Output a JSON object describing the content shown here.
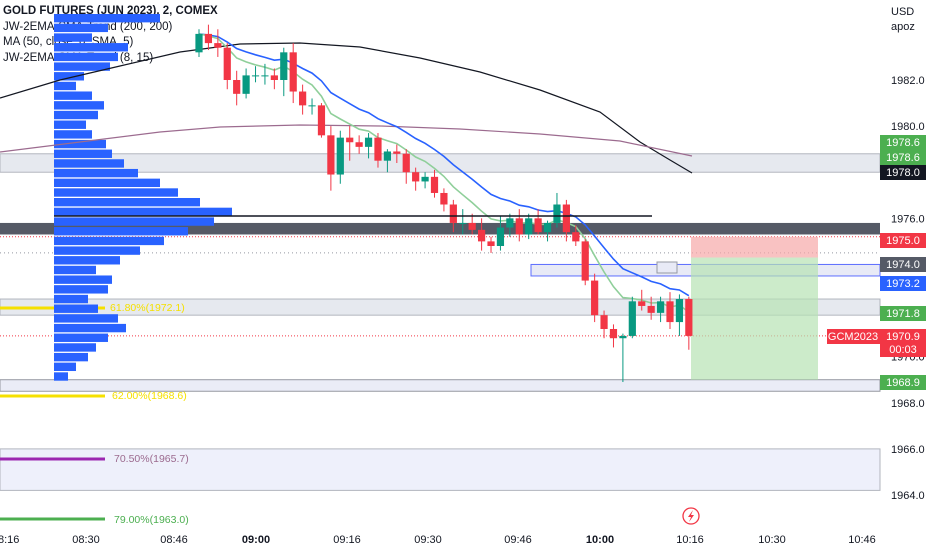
{
  "legend": {
    "title": "GOLD FUTURES (JUN 2023), 2, COMEX",
    "line1": "JW-2EMA-SMA-Trend (200, 200)",
    "line2": "MA (50, close, 0, SMA, 5)",
    "line3": "JW-2EMA-SMA-Trend (8, 15)"
  },
  "currency": "USD",
  "currency_sub": "apoz",
  "colors": {
    "up": "#089981",
    "down": "#f23645",
    "ema_fast": "#2962ff",
    "ema_slow": "#8fcf9a",
    "ma": "#131722",
    "sma200": "#9c6b8f",
    "profile": "#2962ff",
    "fib": "#f5e000",
    "fib2": "#9c27b0",
    "fib3": "#4caf50"
  },
  "fib_labels": {
    "fib_a": "61.80%(1972.1)",
    "fib_b": "62.00%(1968.6)",
    "fib_c": "70.50%(1965.7)",
    "fib_d": "79.00%(1963.0)"
  },
  "badges": {
    "r1": "1978.6",
    "r2": "1978.6",
    "r3": "1978.0",
    "r4": "1975.0",
    "r5": "1974.0",
    "r6": "1973.2",
    "r7": "1971.8",
    "r8": "1970.9",
    "r8_timer": "00:03",
    "r9": "1968.9",
    "symbol": "GCM2023"
  },
  "chart_data": {
    "type": "candlestick",
    "title": "GOLD FUTURES (JUN 2023), 2, COMEX",
    "interval": "2",
    "y_ticks": [
      1964.0,
      1966.0,
      1968.0,
      1970.0,
      1976.0,
      1978.0,
      1980.0,
      1982.0
    ],
    "x_ticks": [
      {
        "label": "8:16",
        "bold": false
      },
      {
        "label": "08:30",
        "bold": false
      },
      {
        "label": "08:46",
        "bold": false
      },
      {
        "label": "09:00",
        "bold": true
      },
      {
        "label": "09:16",
        "bold": false
      },
      {
        "label": "09:30",
        "bold": false
      },
      {
        "label": "09:46",
        "bold": false
      },
      {
        "label": "10:00",
        "bold": true
      },
      {
        "label": "10:16",
        "bold": false
      },
      {
        "label": "10:30",
        "bold": false
      },
      {
        "label": "10:46",
        "bold": false
      }
    ],
    "candles": [
      {
        "o": 1983.2,
        "h": 1984.2,
        "l": 1983.0,
        "c": 1984.0
      },
      {
        "o": 1984.0,
        "h": 1984.4,
        "l": 1983.3,
        "c": 1983.6
      },
      {
        "o": 1983.6,
        "h": 1984.2,
        "l": 1983.0,
        "c": 1983.4
      },
      {
        "o": 1983.4,
        "h": 1983.6,
        "l": 1981.6,
        "c": 1982.0
      },
      {
        "o": 1982.0,
        "h": 1982.4,
        "l": 1980.9,
        "c": 1981.4
      },
      {
        "o": 1981.4,
        "h": 1982.5,
        "l": 1981.2,
        "c": 1982.2
      },
      {
        "o": 1982.2,
        "h": 1982.6,
        "l": 1981.9,
        "c": 1982.2
      },
      {
        "o": 1982.2,
        "h": 1982.7,
        "l": 1981.8,
        "c": 1982.2
      },
      {
        "o": 1982.2,
        "h": 1982.5,
        "l": 1981.6,
        "c": 1982.0
      },
      {
        "o": 1982.0,
        "h": 1983.4,
        "l": 1981.3,
        "c": 1983.2
      },
      {
        "o": 1983.2,
        "h": 1983.6,
        "l": 1981.0,
        "c": 1981.5
      },
      {
        "o": 1981.5,
        "h": 1981.8,
        "l": 1980.5,
        "c": 1980.9
      },
      {
        "o": 1980.9,
        "h": 1981.2,
        "l": 1980.5,
        "c": 1980.9
      },
      {
        "o": 1980.9,
        "h": 1981.0,
        "l": 1979.5,
        "c": 1979.6
      },
      {
        "o": 1979.6,
        "h": 1980.0,
        "l": 1977.2,
        "c": 1977.9
      },
      {
        "o": 1977.9,
        "h": 1979.8,
        "l": 1977.5,
        "c": 1979.5
      },
      {
        "o": 1979.5,
        "h": 1980.0,
        "l": 1978.5,
        "c": 1979.3
      },
      {
        "o": 1979.3,
        "h": 1979.6,
        "l": 1978.8,
        "c": 1979.1
      },
      {
        "o": 1979.1,
        "h": 1979.7,
        "l": 1978.6,
        "c": 1979.5
      },
      {
        "o": 1979.5,
        "h": 1979.7,
        "l": 1978.2,
        "c": 1978.5
      },
      {
        "o": 1978.5,
        "h": 1979.0,
        "l": 1978.0,
        "c": 1978.9
      },
      {
        "o": 1978.9,
        "h": 1979.2,
        "l": 1978.4,
        "c": 1978.8
      },
      {
        "o": 1978.8,
        "h": 1979.0,
        "l": 1977.5,
        "c": 1978.0
      },
      {
        "o": 1978.0,
        "h": 1978.2,
        "l": 1977.2,
        "c": 1977.6
      },
      {
        "o": 1977.6,
        "h": 1978.0,
        "l": 1977.3,
        "c": 1977.8
      },
      {
        "o": 1977.8,
        "h": 1978.1,
        "l": 1976.9,
        "c": 1977.1
      },
      {
        "o": 1977.1,
        "h": 1977.3,
        "l": 1976.3,
        "c": 1976.6
      },
      {
        "o": 1976.6,
        "h": 1976.8,
        "l": 1975.4,
        "c": 1975.8
      },
      {
        "o": 1975.8,
        "h": 1976.4,
        "l": 1975.3,
        "c": 1975.8
      },
      {
        "o": 1975.8,
        "h": 1976.2,
        "l": 1975.3,
        "c": 1975.5
      },
      {
        "o": 1975.5,
        "h": 1976.0,
        "l": 1974.6,
        "c": 1975.0
      },
      {
        "o": 1975.0,
        "h": 1975.2,
        "l": 1974.5,
        "c": 1974.8
      },
      {
        "o": 1974.8,
        "h": 1976.1,
        "l": 1974.6,
        "c": 1975.6
      },
      {
        "o": 1975.6,
        "h": 1976.2,
        "l": 1975.2,
        "c": 1976.0
      },
      {
        "o": 1976.0,
        "h": 1976.4,
        "l": 1975.0,
        "c": 1975.3
      },
      {
        "o": 1975.3,
        "h": 1976.2,
        "l": 1975.1,
        "c": 1976.0
      },
      {
        "o": 1976.0,
        "h": 1976.4,
        "l": 1975.3,
        "c": 1975.4
      },
      {
        "o": 1975.4,
        "h": 1975.9,
        "l": 1975.0,
        "c": 1975.8
      },
      {
        "o": 1975.8,
        "h": 1977.1,
        "l": 1975.6,
        "c": 1976.6
      },
      {
        "o": 1976.6,
        "h": 1976.8,
        "l": 1975.0,
        "c": 1975.4
      },
      {
        "o": 1975.4,
        "h": 1975.7,
        "l": 1974.8,
        "c": 1975.0
      },
      {
        "o": 1975.0,
        "h": 1975.1,
        "l": 1973.1,
        "c": 1973.3
      },
      {
        "o": 1973.3,
        "h": 1973.6,
        "l": 1971.5,
        "c": 1971.8
      },
      {
        "o": 1971.8,
        "h": 1972.0,
        "l": 1970.8,
        "c": 1971.2
      },
      {
        "o": 1971.2,
        "h": 1971.4,
        "l": 1970.4,
        "c": 1970.8
      },
      {
        "o": 1970.8,
        "h": 1971.0,
        "l": 1968.9,
        "c": 1970.9
      },
      {
        "o": 1970.9,
        "h": 1972.6,
        "l": 1970.8,
        "c": 1972.4
      },
      {
        "o": 1972.4,
        "h": 1972.9,
        "l": 1972.0,
        "c": 1972.2
      },
      {
        "o": 1972.2,
        "h": 1972.6,
        "l": 1971.6,
        "c": 1971.9
      },
      {
        "o": 1971.9,
        "h": 1972.6,
        "l": 1971.5,
        "c": 1972.4
      },
      {
        "o": 1972.4,
        "h": 1972.8,
        "l": 1971.2,
        "c": 1971.5
      },
      {
        "o": 1971.5,
        "h": 1972.7,
        "l": 1970.9,
        "c": 1972.5
      },
      {
        "o": 1972.5,
        "h": 1972.6,
        "l": 1970.3,
        "c": 1970.9
      }
    ]
  }
}
